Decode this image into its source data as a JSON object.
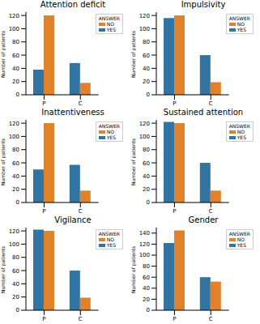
{
  "chart_data": [
    {
      "type": "bar",
      "title": "Attention deficit",
      "categories": [
        "P",
        "C"
      ],
      "ylabel": "Number of patients",
      "legend_title": "ANSWER",
      "legend": "upper right",
      "ylim": [
        0,
        125
      ],
      "yticks": [
        0,
        20,
        40,
        60,
        80,
        100,
        120
      ],
      "series": [
        {
          "name": "YES",
          "color": "#3274a1",
          "values": [
            38,
            48
          ]
        },
        {
          "name": "NO",
          "color": "#e1812c",
          "values": [
            120,
            18
          ]
        }
      ]
    },
    {
      "type": "bar",
      "title": "Impulsivity",
      "categories": [
        "P",
        "C"
      ],
      "ylabel": "Number of patients",
      "legend_title": "ANSWER",
      "legend": "upper right",
      "ylim": [
        0,
        125
      ],
      "yticks": [
        0,
        20,
        40,
        60,
        80,
        100,
        120
      ],
      "series": [
        {
          "name": "YES",
          "color": "#3274a1",
          "values": [
            116,
            60
          ]
        },
        {
          "name": "NO",
          "color": "#e1812c",
          "values": [
            120,
            19
          ]
        }
      ]
    },
    {
      "type": "bar",
      "title": "Inattentiveness",
      "categories": [
        "P",
        "C"
      ],
      "ylabel": "Number of patients",
      "legend_title": "ANSWER",
      "legend": "upper right",
      "ylim": [
        0,
        125
      ],
      "yticks": [
        0,
        20,
        40,
        60,
        80,
        100,
        120
      ],
      "series": [
        {
          "name": "YES",
          "color": "#3274a1",
          "values": [
            50,
            57
          ]
        },
        {
          "name": "NO",
          "color": "#e1812c",
          "values": [
            120,
            18
          ]
        }
      ]
    },
    {
      "type": "bar",
      "title": "Sustained attention",
      "categories": [
        "P",
        "C"
      ],
      "ylabel": "Number of patients",
      "legend_title": "ANSWER",
      "legend": "upper right",
      "ylim": [
        0,
        125
      ],
      "yticks": [
        0,
        20,
        40,
        60,
        80,
        100,
        120
      ],
      "series": [
        {
          "name": "YES",
          "color": "#3274a1",
          "values": [
            122,
            60
          ]
        },
        {
          "name": "NO",
          "color": "#e1812c",
          "values": [
            120,
            18
          ]
        }
      ]
    },
    {
      "type": "bar",
      "title": "Vigilance",
      "categories": [
        "P",
        "C"
      ],
      "ylabel": "Number of patients",
      "legend_title": "ANSWER",
      "legend": "upper right",
      "ylim": [
        0,
        125
      ],
      "yticks": [
        0,
        20,
        40,
        60,
        80,
        100,
        120
      ],
      "series": [
        {
          "name": "YES",
          "color": "#3274a1",
          "values": [
            122,
            60
          ]
        },
        {
          "name": "NO",
          "color": "#e1812c",
          "values": [
            120,
            19
          ]
        }
      ]
    },
    {
      "type": "bar",
      "title": "Gender",
      "categories": [
        "P",
        "C"
      ],
      "ylabel": "Number of patients",
      "legend_title": "ANSWER",
      "legend": "upper right",
      "ylim": [
        0,
        150
      ],
      "yticks": [
        0,
        20,
        40,
        60,
        80,
        100,
        120,
        140
      ],
      "series": [
        {
          "name": "YES",
          "color": "#3274a1",
          "values": [
            122,
            60
          ]
        },
        {
          "name": "NO",
          "color": "#e1812c",
          "values": [
            145,
            52
          ]
        }
      ]
    }
  ]
}
